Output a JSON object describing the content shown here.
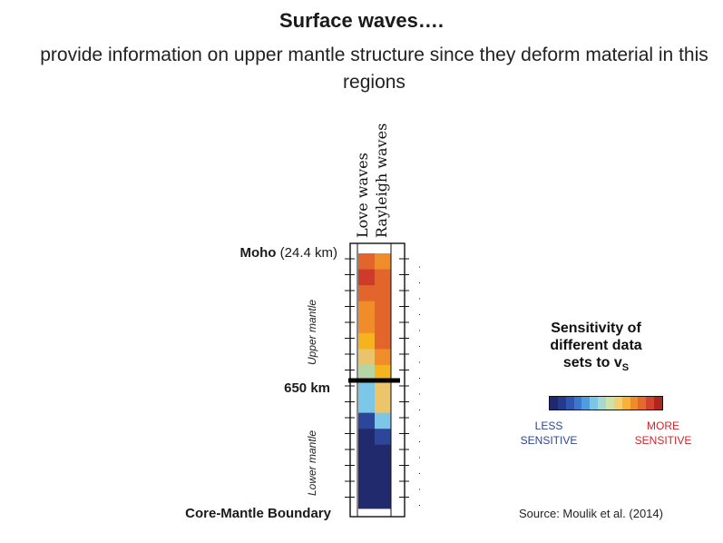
{
  "title": "Surface waves….",
  "subtitle": "provide information on upper mantle structure since they deform material in this regions",
  "columns": [
    "Love waves",
    "Rayleigh waves"
  ],
  "labels": {
    "moho_bold": "Moho",
    "moho_depth": "(24.4 km)",
    "km650": "650 km",
    "cmb": "Core-Mantle Boundary",
    "upper": "Upper mantle",
    "lower": "Lower mantle"
  },
  "legend": {
    "title_line1": "Sensitivity of",
    "title_line2": "different data",
    "title_line3": "sets to v",
    "title_sub": "S",
    "less_line1": "LESS",
    "less_line2": "SENSITIVE",
    "more_line1": "MORE",
    "more_line2": "SENSITIVE",
    "colors": [
      "#1f2a6e",
      "#243a8c",
      "#2e55b0",
      "#3a78cc",
      "#4e9de0",
      "#7cc6e8",
      "#a8d8d0",
      "#cfe2a8",
      "#f0d070",
      "#f6b23a",
      "#f08a2a",
      "#e26a2c",
      "#d2422c",
      "#b0261e"
    ]
  },
  "source": "Source: Moulik et al. (2014)",
  "chart_data": {
    "type": "heatmap",
    "columns": [
      "Love waves",
      "Rayleigh waves"
    ],
    "cells": {
      "Love waves": [
        "#e2662c",
        "#cf3b2b",
        "#e2662c",
        "#f08c2a",
        "#f08c2a",
        "#f6b31e",
        "#e9c46a",
        "#b5d5a5",
        "#7cc6e8",
        "#7cc6e8",
        "#2c4699",
        "#222a6e",
        "#222a6e",
        "#222a6e",
        "#222a6e",
        "#222a6e"
      ],
      "Rayleigh waves": [
        "#f08c2a",
        "#e2662c",
        "#e2662c",
        "#e2662c",
        "#e2662c",
        "#e2662c",
        "#f08c2a",
        "#f6b31e",
        "#ecc46b",
        "#ecc46b",
        "#7cc6e8",
        "#2c4699",
        "#222a6e",
        "#222a6e",
        "#222a6e",
        "#222a6e"
      ]
    }
  }
}
